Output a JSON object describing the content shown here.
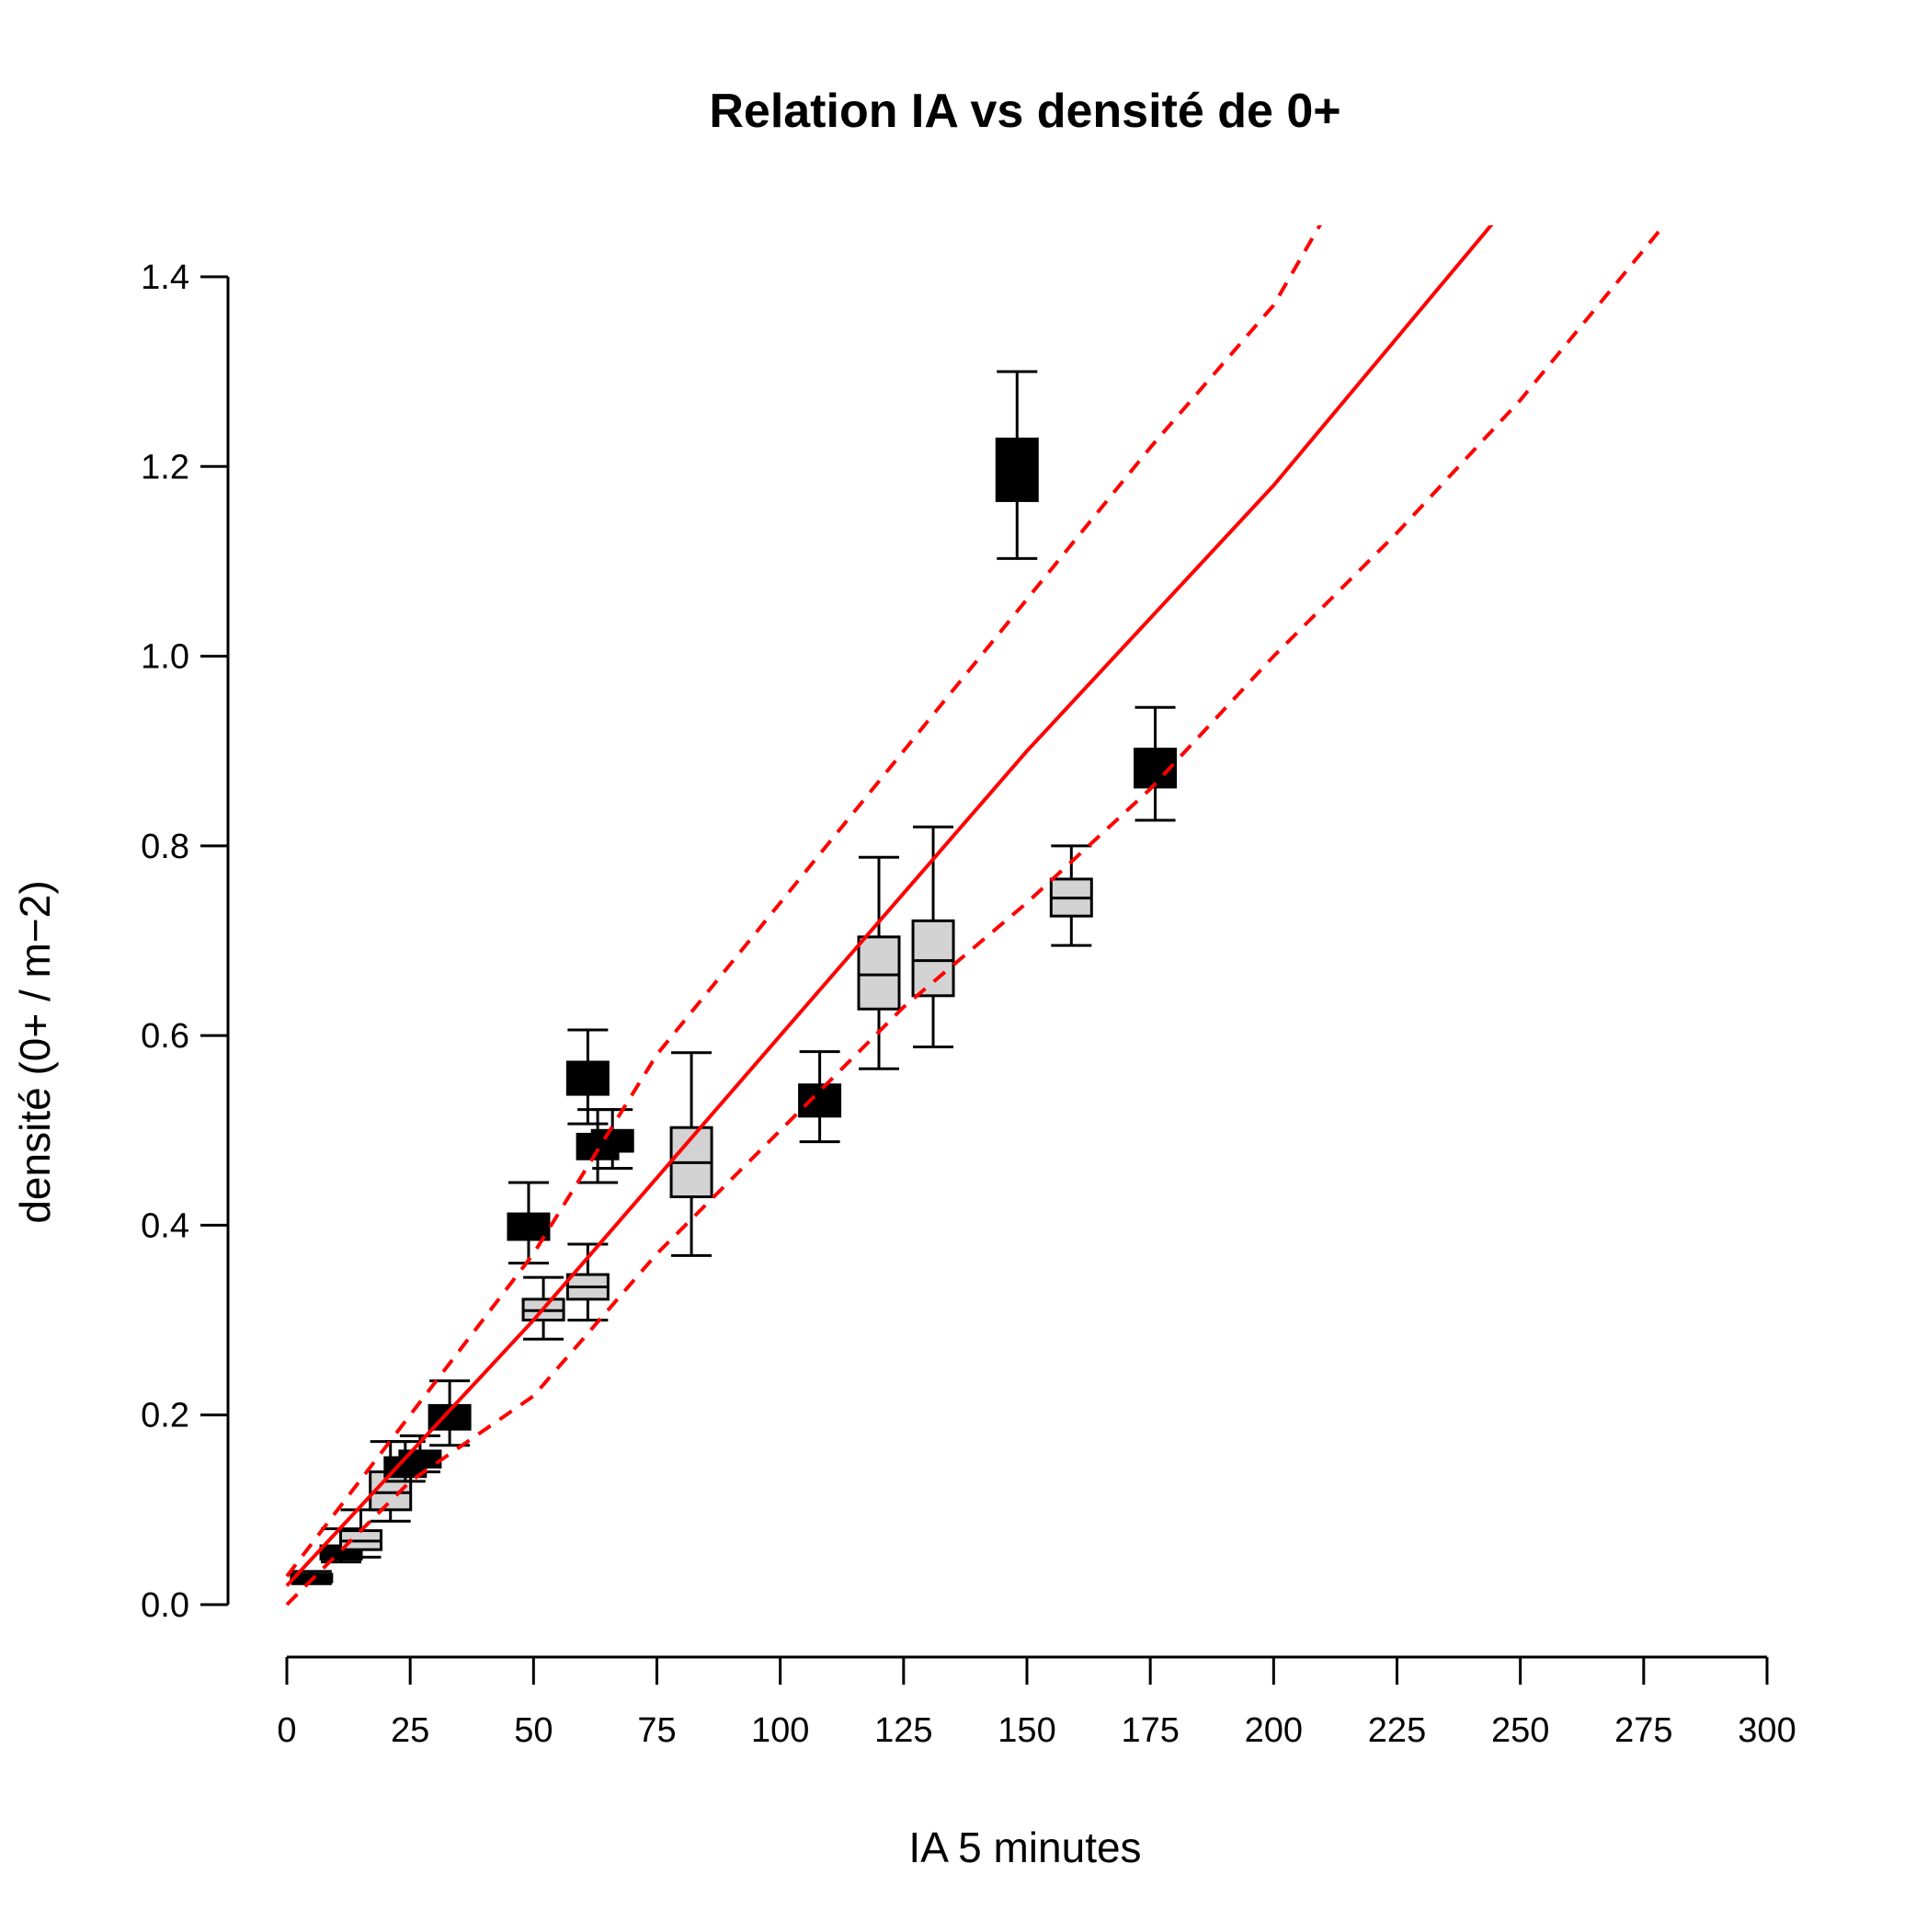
{
  "chart_data": {
    "type": "boxplot",
    "title": "Relation IA vs densité de 0+",
    "xlabel": "IA 5 minutes",
    "ylabel": "densité (0+ / m−2)",
    "xlim": [
      0,
      300
    ],
    "ylim": [
      0,
      1.4
    ],
    "x_ticks": [
      "0",
      "25",
      "50",
      "75",
      "100",
      "125",
      "150",
      "175",
      "200",
      "225",
      "250",
      "275",
      "300"
    ],
    "y_ticks": [
      "0.0",
      "0.2",
      "0.4",
      "0.6",
      "0.8",
      "1.0",
      "1.2",
      "1.4"
    ],
    "grid": false,
    "colors": {
      "regression": "#ff0000",
      "box_black": "#000000",
      "box_grey": "#d3d3d3"
    },
    "regression": {
      "fit": [
        [
          0,
          0.02
        ],
        [
          50,
          0.3
        ],
        [
          100,
          0.6
        ],
        [
          150,
          0.9
        ],
        [
          200,
          1.18
        ],
        [
          245,
          1.46
        ]
      ],
      "upper": [
        [
          0,
          0.03
        ],
        [
          25,
          0.2
        ],
        [
          50,
          0.37
        ],
        [
          75,
          0.58
        ],
        [
          100,
          0.74
        ],
        [
          125,
          0.9
        ],
        [
          150,
          1.06
        ],
        [
          175,
          1.22
        ],
        [
          200,
          1.37
        ],
        [
          210,
          1.46
        ]
      ],
      "lower": [
        [
          0,
          0.0
        ],
        [
          25,
          0.13
        ],
        [
          50,
          0.22
        ],
        [
          75,
          0.37
        ],
        [
          100,
          0.5
        ],
        [
          125,
          0.63
        ],
        [
          150,
          0.74
        ],
        [
          175,
          0.86
        ],
        [
          200,
          1.0
        ],
        [
          225,
          1.13
        ],
        [
          250,
          1.27
        ],
        [
          280,
          1.46
        ]
      ]
    },
    "boxes": [
      {
        "x": 5,
        "min": 0.022,
        "q1": 0.024,
        "median": 0.027,
        "q3": 0.032,
        "max": 0.035,
        "fill": "black"
      },
      {
        "x": 11,
        "min": 0.045,
        "q1": 0.048,
        "median": 0.055,
        "q3": 0.062,
        "max": 0.08,
        "fill": "black"
      },
      {
        "x": 15,
        "min": 0.05,
        "q1": 0.058,
        "median": 0.067,
        "q3": 0.078,
        "max": 0.1,
        "fill": "grey"
      },
      {
        "x": 21,
        "min": 0.088,
        "q1": 0.1,
        "median": 0.118,
        "q3": 0.14,
        "max": 0.172,
        "fill": "grey"
      },
      {
        "x": 24,
        "min": 0.13,
        "q1": 0.135,
        "median": 0.145,
        "q3": 0.155,
        "max": 0.172,
        "fill": "black"
      },
      {
        "x": 27,
        "min": 0.14,
        "q1": 0.145,
        "median": 0.152,
        "q3": 0.162,
        "max": 0.178,
        "fill": "black"
      },
      {
        "x": 33,
        "min": 0.168,
        "q1": 0.185,
        "median": 0.197,
        "q3": 0.21,
        "max": 0.236,
        "fill": "black"
      },
      {
        "x": 49,
        "min": 0.36,
        "q1": 0.385,
        "median": 0.398,
        "q3": 0.412,
        "max": 0.445,
        "fill": "black"
      },
      {
        "x": 52,
        "min": 0.28,
        "q1": 0.3,
        "median": 0.31,
        "q3": 0.322,
        "max": 0.345,
        "fill": "grey"
      },
      {
        "x": 61,
        "min": 0.507,
        "q1": 0.538,
        "median": 0.555,
        "q3": 0.572,
        "max": 0.606,
        "fill": "black"
      },
      {
        "x": 63,
        "min": 0.445,
        "q1": 0.47,
        "median": 0.482,
        "q3": 0.496,
        "max": 0.522,
        "fill": "black"
      },
      {
        "x": 61,
        "min": 0.3,
        "q1": 0.322,
        "median": 0.335,
        "q3": 0.348,
        "max": 0.38,
        "fill": "grey"
      },
      {
        "x": 66,
        "min": 0.46,
        "q1": 0.478,
        "median": 0.488,
        "q3": 0.5,
        "max": 0.522,
        "fill": "black"
      },
      {
        "x": 82,
        "min": 0.368,
        "q1": 0.43,
        "median": 0.466,
        "q3": 0.503,
        "max": 0.582,
        "fill": "grey"
      },
      {
        "x": 108,
        "min": 0.488,
        "q1": 0.515,
        "median": 0.53,
        "q3": 0.548,
        "max": 0.583,
        "fill": "black"
      },
      {
        "x": 120,
        "min": 0.565,
        "q1": 0.628,
        "median": 0.664,
        "q3": 0.704,
        "max": 0.788,
        "fill": "grey"
      },
      {
        "x": 131,
        "min": 0.588,
        "q1": 0.642,
        "median": 0.679,
        "q3": 0.721,
        "max": 0.82,
        "fill": "grey"
      },
      {
        "x": 148,
        "min": 1.103,
        "q1": 1.164,
        "median": 1.196,
        "q3": 1.229,
        "max": 1.3,
        "fill": "black"
      },
      {
        "x": 159,
        "min": 0.695,
        "q1": 0.726,
        "median": 0.745,
        "q3": 0.765,
        "max": 0.8,
        "fill": "grey"
      },
      {
        "x": 176,
        "min": 0.827,
        "q1": 0.862,
        "median": 0.882,
        "q3": 0.902,
        "max": 0.946,
        "fill": "black"
      }
    ]
  }
}
